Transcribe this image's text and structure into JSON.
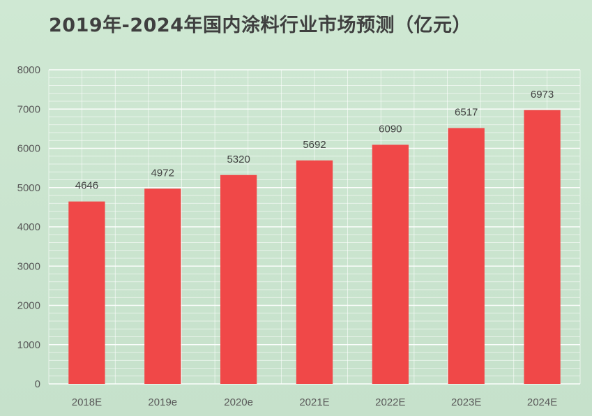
{
  "chart_data": {
    "type": "bar",
    "title": "2019年-2024年国内涂料行业市场预测（亿元）",
    "xlabel": "",
    "ylabel": "",
    "categories": [
      "2018E",
      "2019e",
      "2020e",
      "2021E",
      "2022E",
      "2023E",
      "2024E"
    ],
    "values": [
      4646,
      4972,
      5320,
      5692,
      6090,
      6517,
      6973
    ],
    "ylim": [
      0,
      8000
    ],
    "yticks": [
      0,
      1000,
      2000,
      3000,
      4000,
      5000,
      6000,
      7000,
      8000
    ],
    "grid": true,
    "data_labels": true,
    "colors": {
      "bar": "#f04848",
      "grid": "#ffffff",
      "background": "#cfe8d3"
    }
  }
}
